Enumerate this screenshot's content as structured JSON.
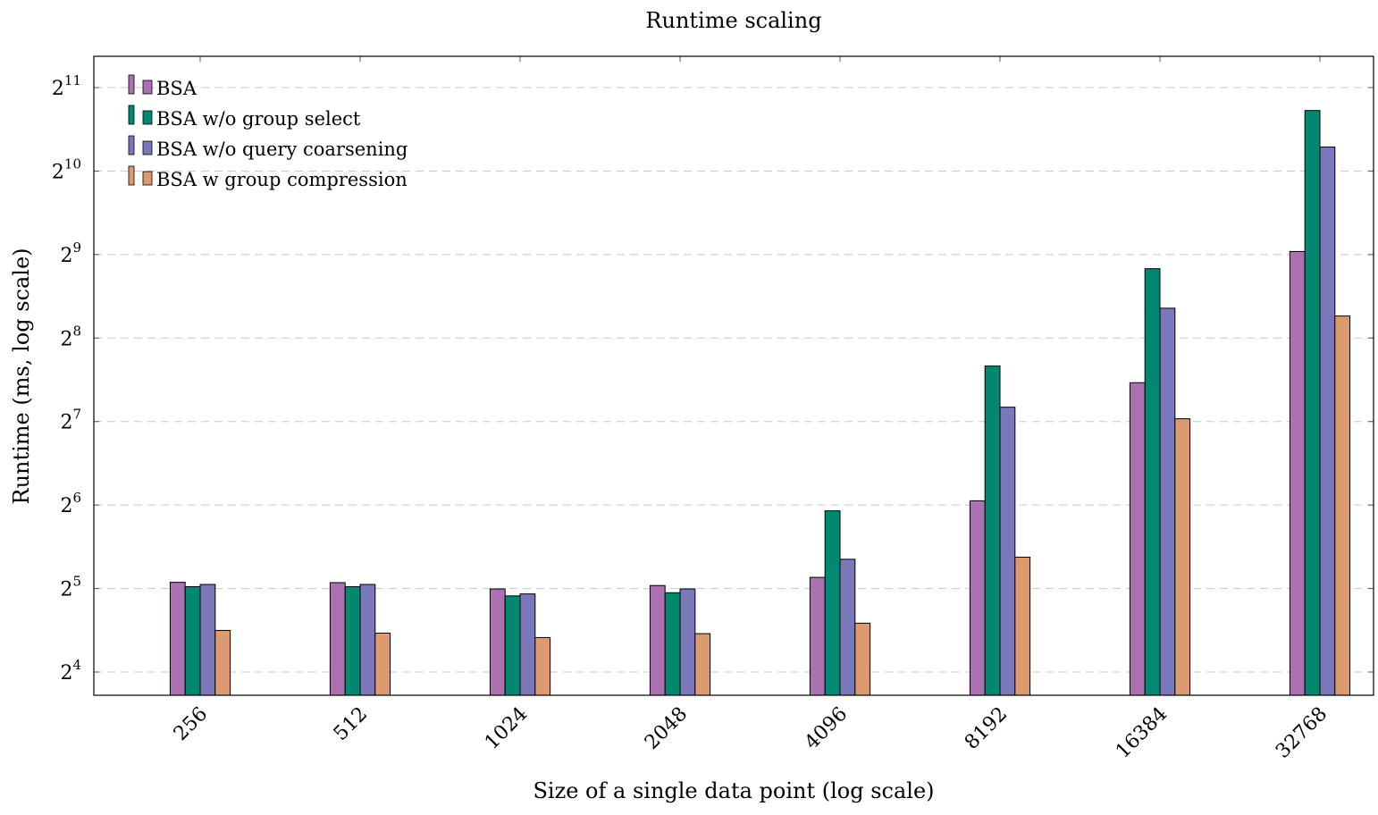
{
  "chart_data": {
    "type": "bar",
    "title": "Runtime scaling",
    "xlabel": "Size of a single data point (log scale)",
    "ylabel": "Runtime (ms, log scale)",
    "y_scale": "log2",
    "ylim": [
      13.6,
      2600
    ],
    "grid": "horizontal dashed",
    "legend_position": "top-left",
    "categories": [
      "256",
      "512",
      "1024",
      "2048",
      "4096",
      "8192",
      "16384",
      "32768"
    ],
    "y_ticks": [
      {
        "base": "2",
        "exp": "4",
        "value": 16
      },
      {
        "base": "2",
        "exp": "5",
        "value": 32
      },
      {
        "base": "2",
        "exp": "6",
        "value": 64
      },
      {
        "base": "2",
        "exp": "7",
        "value": 128
      },
      {
        "base": "2",
        "exp": "8",
        "value": 256
      },
      {
        "base": "2",
        "exp": "9",
        "value": 512
      },
      {
        "base": "2",
        "exp": "10",
        "value": 1024
      },
      {
        "base": "2",
        "exp": "11",
        "value": 2048
      }
    ],
    "series": [
      {
        "name": "BSA",
        "color": "#ab71b1",
        "values": [
          33.7,
          33.6,
          31.9,
          32.8,
          35.1,
          66.3,
          176.7,
          525.2
        ]
      },
      {
        "name": "BSA w/o group select",
        "color": "#028770",
        "values": [
          32.5,
          32.5,
          30.1,
          30.9,
          61.0,
          202.9,
          455.3,
          1692.5
        ]
      },
      {
        "name": "BSA w/o query coarsening",
        "color": "#7a78ba",
        "values": [
          33.1,
          33.1,
          30.6,
          31.9,
          40.8,
          144.2,
          328.0,
          1250.0
        ]
      },
      {
        "name": "BSA w group compression",
        "color": "#dc9a6f",
        "values": [
          22.6,
          22.1,
          21.3,
          22.0,
          24.0,
          41.5,
          131.0,
          307.4
        ]
      }
    ]
  }
}
